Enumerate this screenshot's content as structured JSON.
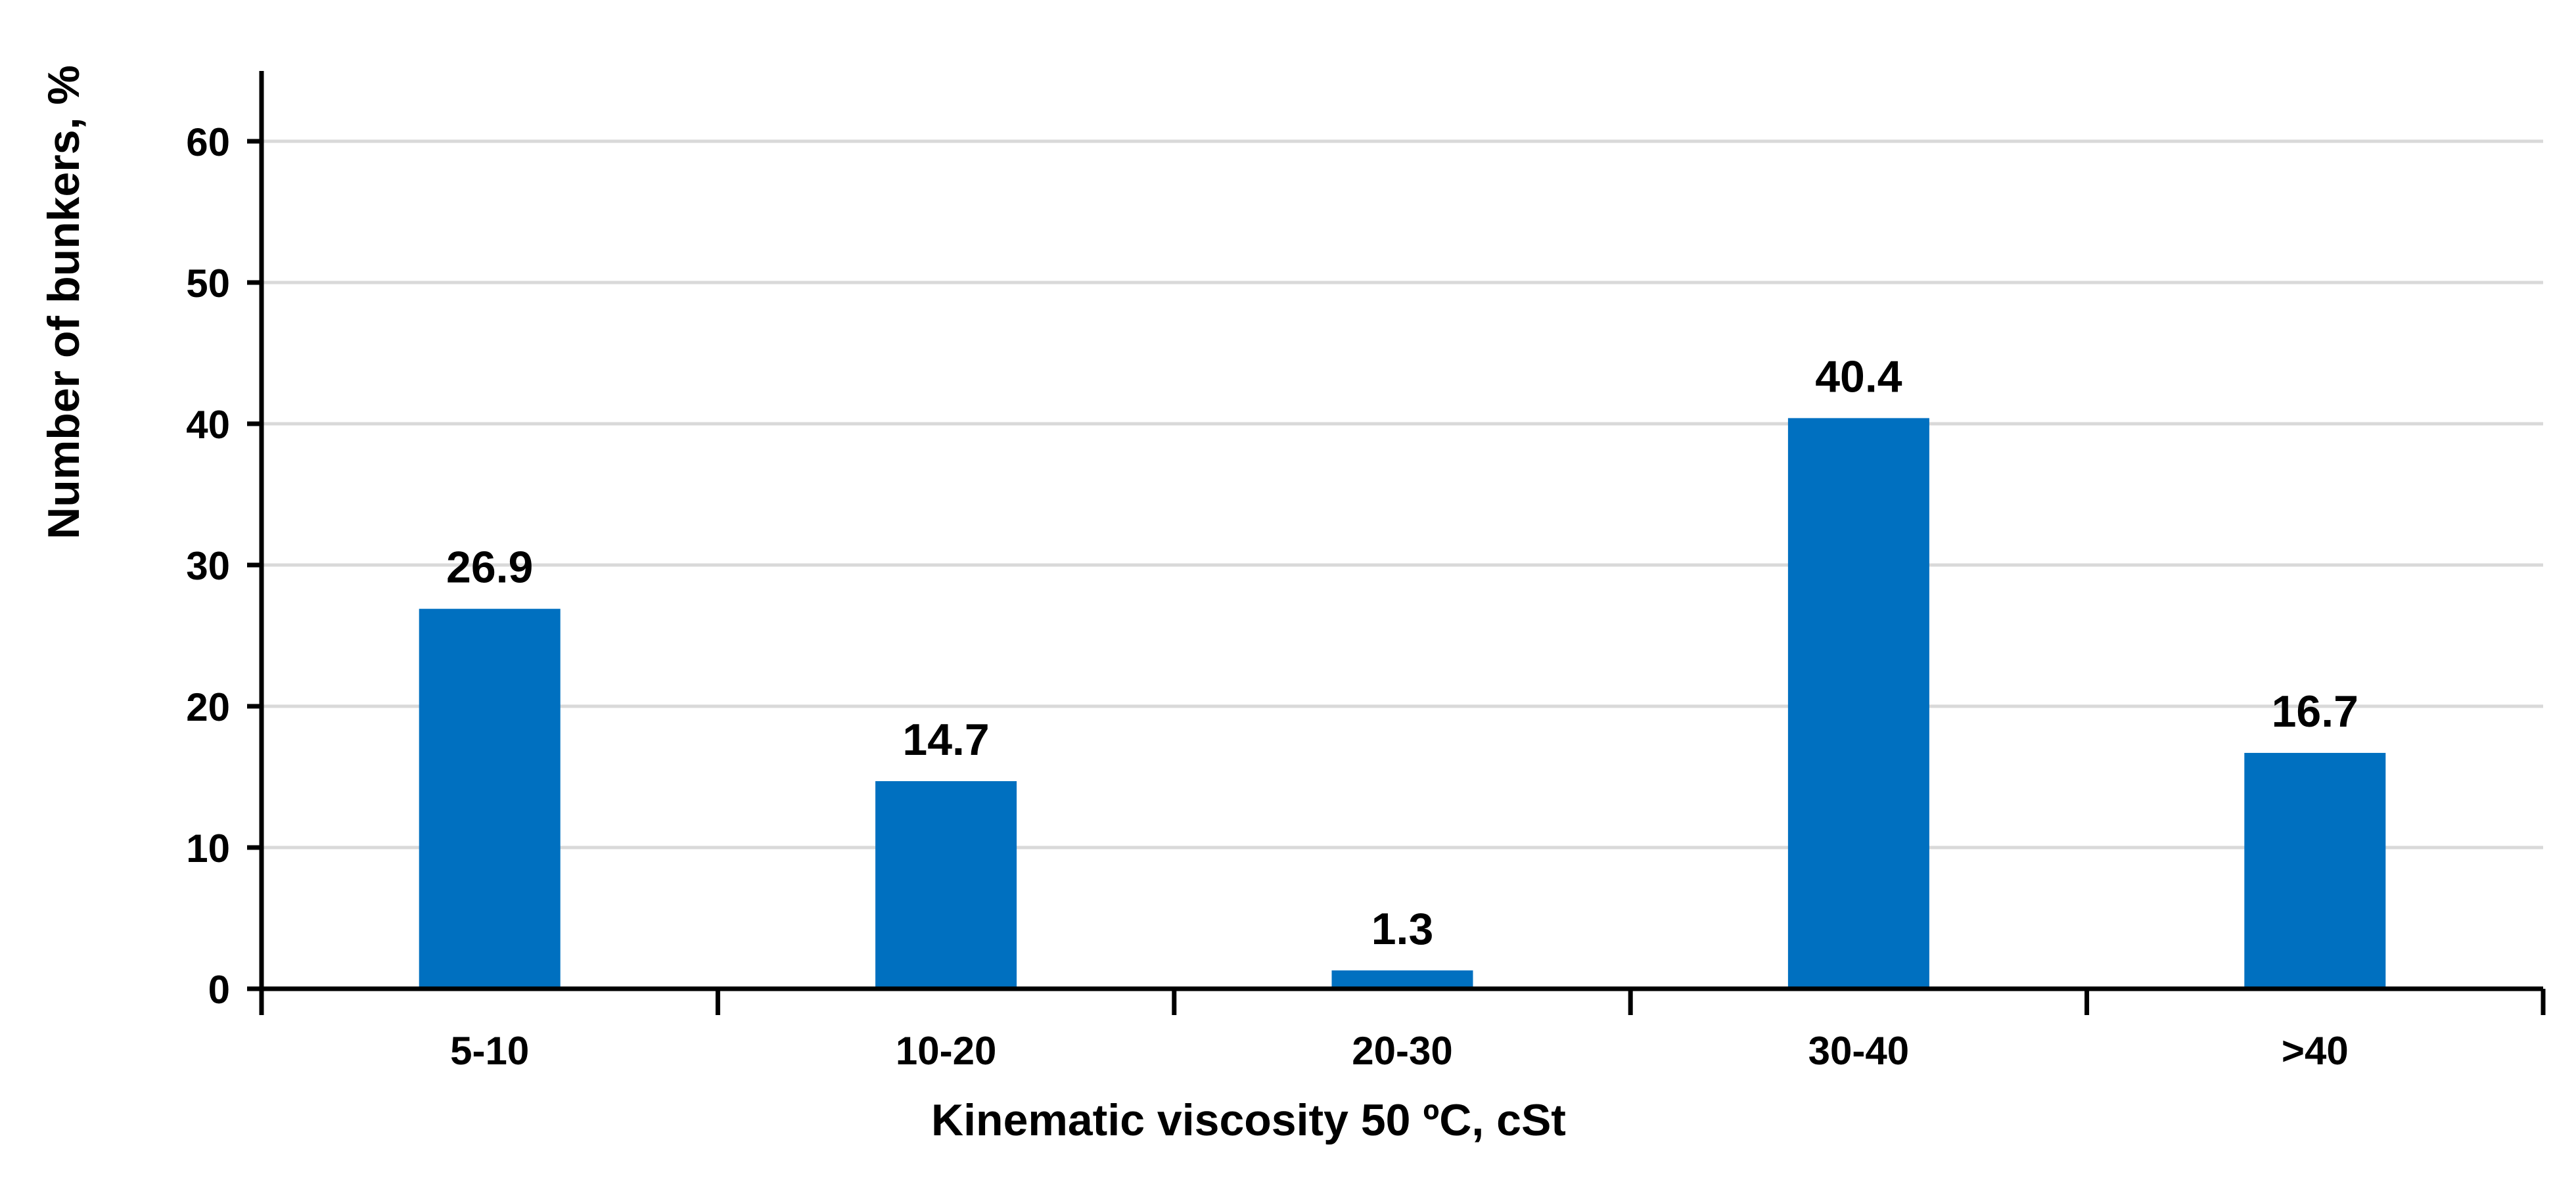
{
  "chart_data": {
    "type": "bar",
    "categories": [
      "5-10",
      "10-20",
      "20-30",
      "30-40",
      ">40"
    ],
    "values": [
      26.9,
      14.7,
      1.3,
      40.4,
      16.7
    ],
    "data_labels": [
      "26.9",
      "14.7",
      "1.3",
      "40.4",
      "16.7"
    ],
    "title": "",
    "xlabel": "Kinematic viscosity 50 ºC, cSt",
    "ylabel": "Number of bunkers, %",
    "ylim": [
      0,
      60
    ],
    "yticks": [
      0,
      10,
      20,
      30,
      40,
      50,
      60
    ],
    "ytick_labels": [
      "0",
      "10",
      "20",
      "30",
      "40",
      "50",
      "60"
    ],
    "grid": "horizontal",
    "legend": "none",
    "colors": {
      "bar": "#0070C0",
      "grid": "#D9D9D9",
      "axis": "#000000",
      "text": "#000000"
    }
  }
}
